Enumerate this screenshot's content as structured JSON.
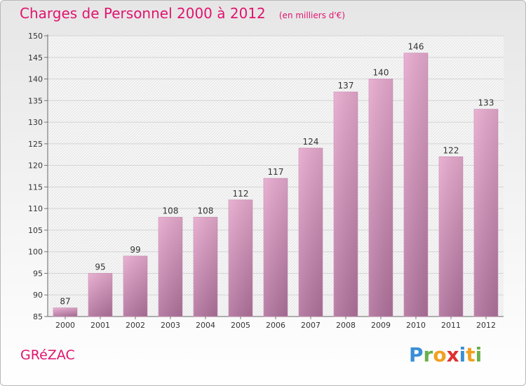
{
  "header": {
    "title": "Charges de Personnel 2000 à 2012",
    "unit_note": "(en milliers d'€)"
  },
  "footer": {
    "commune": "GRéZAC",
    "logo_text": "Proxiti"
  },
  "colors": {
    "title": "#e0146e",
    "bar_top": "#e6a9cd",
    "bar_bottom": "#b0729c"
  },
  "chart_data": {
    "type": "bar",
    "title": "Charges de Personnel 2000 à 2012",
    "subtitle": "(en milliers d'€)",
    "xlabel": "",
    "ylabel": "",
    "categories": [
      "2000",
      "2001",
      "2002",
      "2003",
      "2004",
      "2005",
      "2006",
      "2007",
      "2008",
      "2009",
      "2010",
      "2011",
      "2012"
    ],
    "values": [
      87,
      95,
      99,
      108,
      108,
      112,
      117,
      124,
      137,
      140,
      146,
      122,
      133
    ],
    "ylim": [
      85,
      150
    ],
    "yticks": [
      85,
      90,
      95,
      100,
      105,
      110,
      115,
      120,
      125,
      130,
      135,
      140,
      145,
      150
    ],
    "grid": true,
    "legend": "none"
  }
}
